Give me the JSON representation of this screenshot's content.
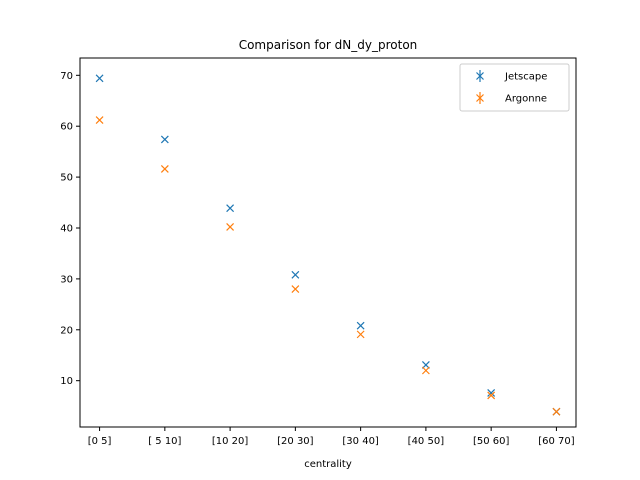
{
  "chart_data": {
    "type": "scatter",
    "title": "Comparison for dN_dy_proton",
    "xlabel": "centrality",
    "ylabel": "",
    "categories": [
      "[0 5]",
      "[ 5 10]",
      "[10 20]",
      "[20 30]",
      "[30 40]",
      "[40 50]",
      "[50 60]",
      "[60 70]"
    ],
    "ylim": [
      0.9,
      73.4
    ],
    "yticks": [
      10,
      20,
      30,
      40,
      50,
      60,
      70
    ],
    "grid": false,
    "legend_placement": "top-right",
    "marker": "x",
    "series": [
      {
        "name": "Jetscape",
        "color": "#1f77b4",
        "values": [
          69.4,
          57.4,
          43.9,
          30.8,
          20.8,
          13.1,
          7.6,
          3.9
        ]
      },
      {
        "name": "Argonne",
        "color": "#ff7f0e",
        "values": [
          61.2,
          51.6,
          40.2,
          28.0,
          19.1,
          12.0,
          7.1,
          3.9
        ]
      }
    ]
  }
}
